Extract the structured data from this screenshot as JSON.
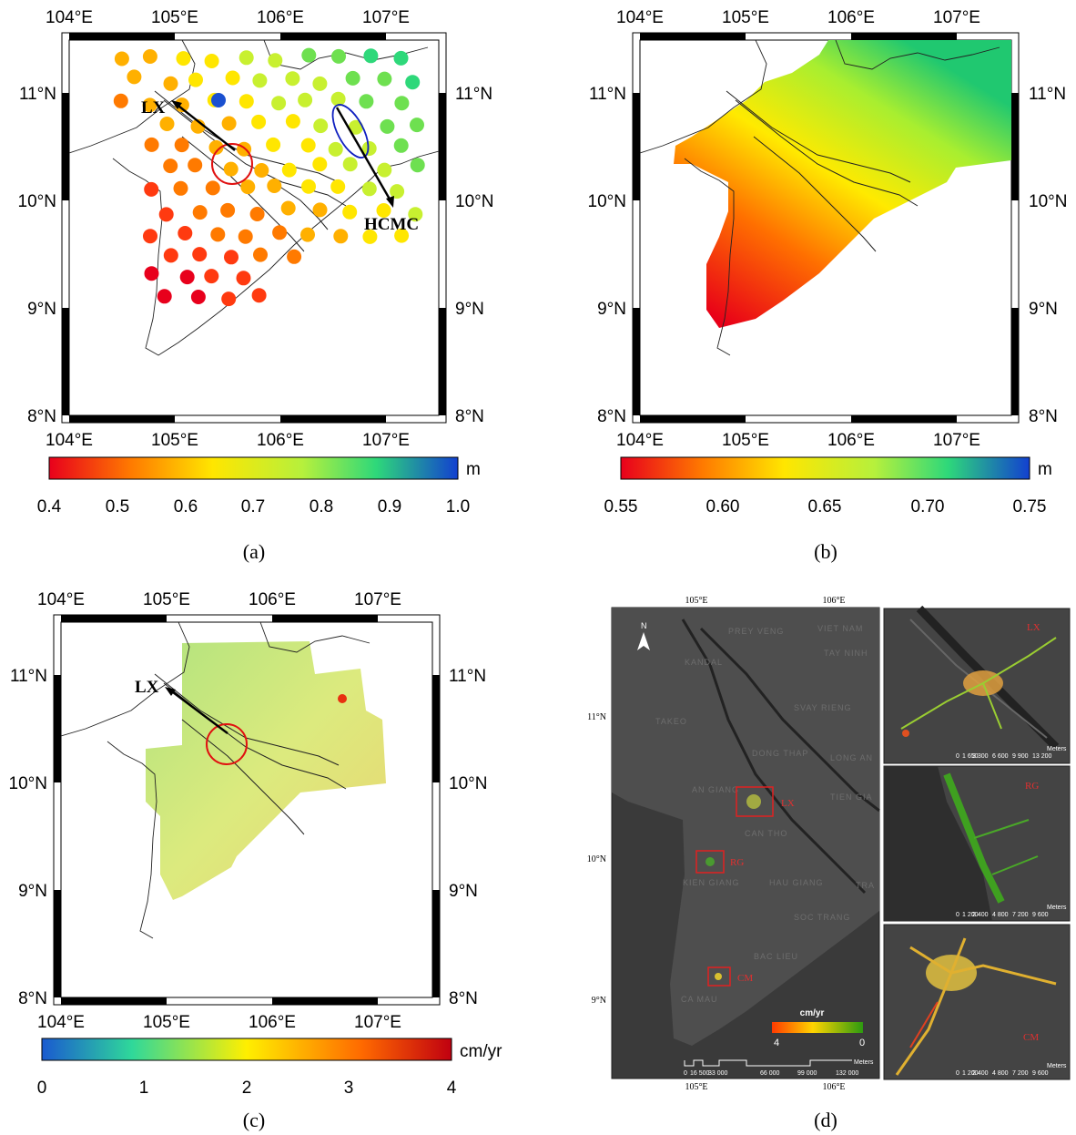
{
  "panel_a": {
    "caption": "(a)",
    "lon_ticks": [
      "104°E",
      "105°E",
      "106°E",
      "107°E"
    ],
    "lat_ticks": [
      "11°N",
      "10°N",
      "9°N",
      "8°N"
    ],
    "labels": {
      "lx": "LX",
      "hcmc": "HCMC"
    },
    "colorbar": {
      "unit": "m",
      "ticks": [
        "0.4",
        "0.5",
        "0.6",
        "0.7",
        "0.8",
        "0.9",
        "1.0"
      ],
      "min": 0.4,
      "max": 1.0,
      "colors": [
        "#e8001c",
        "#ff7a00",
        "#ffe600",
        "#b6f03c",
        "#2ed87a",
        "#1240d0"
      ]
    }
  },
  "panel_b": {
    "caption": "(b)",
    "lon_ticks": [
      "104°E",
      "105°E",
      "106°E",
      "107°E"
    ],
    "lat_ticks": [
      "11°N",
      "10°N",
      "9°N",
      "8°N"
    ],
    "colorbar": {
      "unit": "m",
      "ticks": [
        "0.55",
        "0.60",
        "0.65",
        "0.70",
        "0.75"
      ],
      "colors": [
        "#e8001c",
        "#ff7a00",
        "#ffe600",
        "#b6f03c",
        "#2ed87a",
        "#1240d0"
      ]
    }
  },
  "panel_c": {
    "caption": "(c)",
    "lon_ticks": [
      "104°E",
      "105°E",
      "106°E",
      "107°E"
    ],
    "lat_ticks": [
      "11°N",
      "10°N",
      "9°N",
      "8°N"
    ],
    "labels": {
      "lx": "LX"
    },
    "colorbar": {
      "unit": "cm/yr",
      "ticks": [
        "0",
        "1",
        "2",
        "3",
        "4"
      ],
      "colors": [
        "#1a5ad0",
        "#2fd89a",
        "#ffef00",
        "#ff6a00",
        "#c00010"
      ]
    }
  },
  "panel_d": {
    "caption": "(d)",
    "top_lon": [
      "105°E",
      "106°E"
    ],
    "bottom_lon": [
      "105°E",
      "106°E"
    ],
    "lat_ticks": [
      "11°N",
      "10°N",
      "9°N"
    ],
    "boxes": [
      "LX",
      "RG",
      "CM"
    ],
    "north": "N",
    "legend": {
      "title": "cm/yr",
      "left": "4",
      "right": "0"
    },
    "meters": "Meters",
    "main_scale": [
      "0",
      "16 500",
      "33 000",
      "66 000",
      "99 000",
      "132 000"
    ],
    "inset_lx": {
      "label": "LX",
      "scale": [
        "0",
        "1 650",
        "3 300",
        "6 600",
        "9 900",
        "13 200"
      ]
    },
    "inset_rg": {
      "label": "RG",
      "scale": [
        "0",
        "1 200",
        "2 400",
        "4 800",
        "7 200",
        "9 600"
      ]
    },
    "inset_cm": {
      "label": "CM",
      "scale": [
        "0",
        "1 200",
        "2 400",
        "4 800",
        "7 200",
        "9 600"
      ]
    },
    "places": [
      "PREY VENG",
      "KANDAL",
      "VIET NAM",
      "TAY NINH",
      "SVAY RIENG",
      "TAKEO",
      "DONG THAP",
      "LONG AN",
      "AN GIANG",
      "TIEN GIA",
      "CAN THO",
      "KIEN GIANG",
      "HAU GIANG",
      "TRA",
      "SOC TRANG",
      "BAC LIEU",
      "CA MAU"
    ]
  }
}
